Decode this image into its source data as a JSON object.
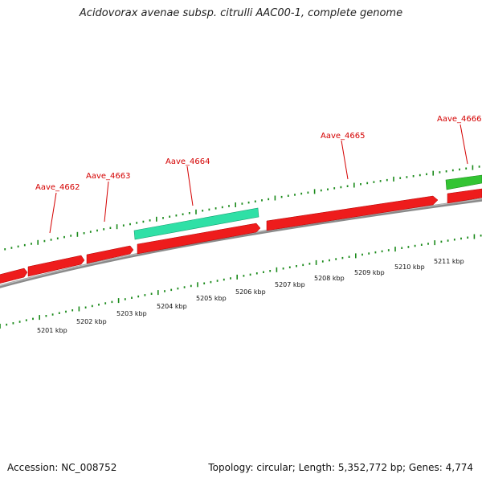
{
  "title": "Acidovorax avenae subsp. citrulli AAC00-1, complete genome",
  "footer": {
    "accession": "Accession: NC_008752",
    "summary": "Topology: circular; Length: 5,352,772 bp; Genes: 4,774"
  },
  "colors": {
    "backbone": "#8a8a8a",
    "forward_gene": "#ee1c1c",
    "highlight_gene": "#2fe0a6",
    "green_gene": "#33c433",
    "tick": "#1a8a1a",
    "label": "#d40000"
  },
  "gene_labels": [
    {
      "id": "g4662",
      "text": "Aave_4662"
    },
    {
      "id": "g4663",
      "text": "Aave_4663"
    },
    {
      "id": "g4664",
      "text": "Aave_4664"
    },
    {
      "id": "g4665",
      "text": "Aave_4665"
    },
    {
      "id": "g4666",
      "text": "Aave_4666"
    }
  ],
  "kbp_labels": [
    "5201 kbp",
    "5202 kbp",
    "5203 kbp",
    "5204 kbp",
    "5205 kbp",
    "5206 kbp",
    "5207 kbp",
    "5208 kbp",
    "5209 kbp",
    "5210 kbp",
    "5211 kbp"
  ]
}
